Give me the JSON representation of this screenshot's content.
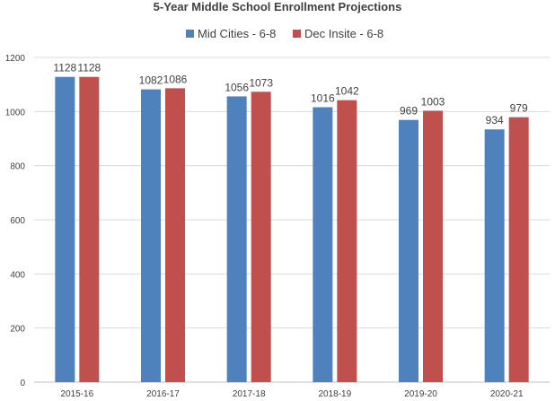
{
  "chart_data": {
    "type": "bar",
    "title": "5-Year Middle School Enrollment Projections",
    "categories": [
      "2015-16",
      "2016-17",
      "2017-18",
      "2018-19",
      "2019-20",
      "2020-21"
    ],
    "series": [
      {
        "name": "Mid Cities - 6-8",
        "color": "#4f81bd",
        "values": [
          1128,
          1082,
          1056,
          1016,
          969,
          934
        ]
      },
      {
        "name": "Dec Insite - 6-8",
        "color": "#c0504d",
        "values": [
          1128,
          1086,
          1073,
          1042,
          1003,
          979
        ]
      }
    ],
    "ylim": [
      0,
      1200
    ],
    "yticks": [
      0,
      200,
      400,
      600,
      800,
      1000,
      1200
    ],
    "grid": true,
    "legend_position": "top-center",
    "data_labels": true
  }
}
